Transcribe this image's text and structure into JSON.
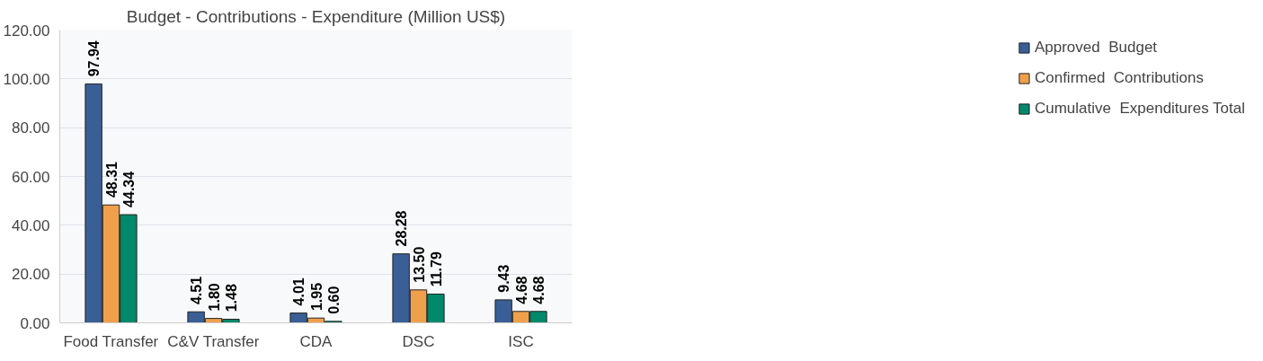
{
  "chart_data": {
    "type": "bar",
    "title": "Budget - Contributions - Expenditure (Million US$)",
    "categories": [
      "Food Transfer",
      "C&V Transfer",
      "CDA",
      "DSC",
      "ISC"
    ],
    "series": [
      {
        "name": "Approved  Budget",
        "color": "#3a5f96",
        "values": [
          97.94,
          4.51,
          4.01,
          28.28,
          9.43
        ],
        "value_labels": [
          "97.94",
          "4.51",
          "4.01",
          "28.28",
          "9.43"
        ]
      },
      {
        "name": "Confirmed  Contributions",
        "color": "#f0a04b",
        "values": [
          48.31,
          1.8,
          1.95,
          13.5,
          4.68
        ],
        "value_labels": [
          "48.31",
          "1.80",
          "1.95",
          "13.50",
          "4.68"
        ]
      },
      {
        "name": "Cumulative  Expenditures Total",
        "color": "#00896b",
        "values": [
          44.34,
          1.48,
          0.6,
          11.79,
          4.68
        ],
        "value_labels": [
          "44.34",
          "1.48",
          "0.60",
          "11.79",
          "4.68"
        ]
      }
    ],
    "ylim": [
      0,
      120
    ],
    "yticks": [
      {
        "value": 0,
        "label": "0.00"
      },
      {
        "value": 20,
        "label": "20.00"
      },
      {
        "value": 40,
        "label": "40.00"
      },
      {
        "value": 60,
        "label": "60.00"
      },
      {
        "value": 80,
        "label": "80.00"
      },
      {
        "value": 100,
        "label": "100.00"
      },
      {
        "value": 120,
        "label": "120.00"
      }
    ],
    "grid": "y",
    "legend": "right"
  }
}
